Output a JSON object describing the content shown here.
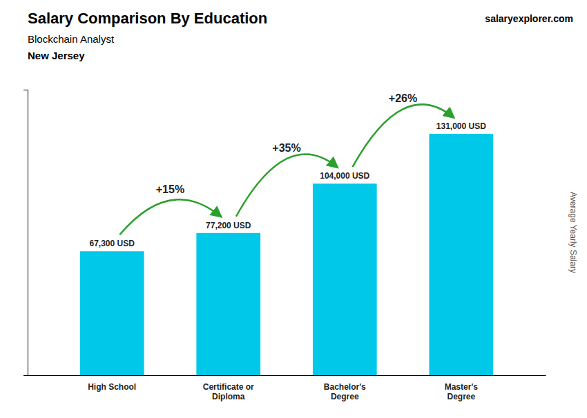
{
  "chart_data": {
    "type": "bar",
    "title": "Salary Comparison By Education",
    "subtitle": "Blockchain Analyst",
    "location": "New Jersey",
    "source": "salaryexplorer.com",
    "ylabel": "Average Yearly Salary",
    "categories": [
      "High School",
      "Certificate or\nDiploma",
      "Bachelor's\nDegree",
      "Master's\nDegree"
    ],
    "values": [
      67300,
      77200,
      104000,
      131000
    ],
    "value_labels": [
      "67,300 USD",
      "77,200 USD",
      "104,000 USD",
      "131,000 USD"
    ],
    "data_labels": true,
    "annotations": [
      "+15%",
      "+35%",
      "+26%"
    ],
    "color": "#00c8e8",
    "ylim": [
      0,
      155000
    ],
    "tick_labels": "x",
    "grid": false
  }
}
